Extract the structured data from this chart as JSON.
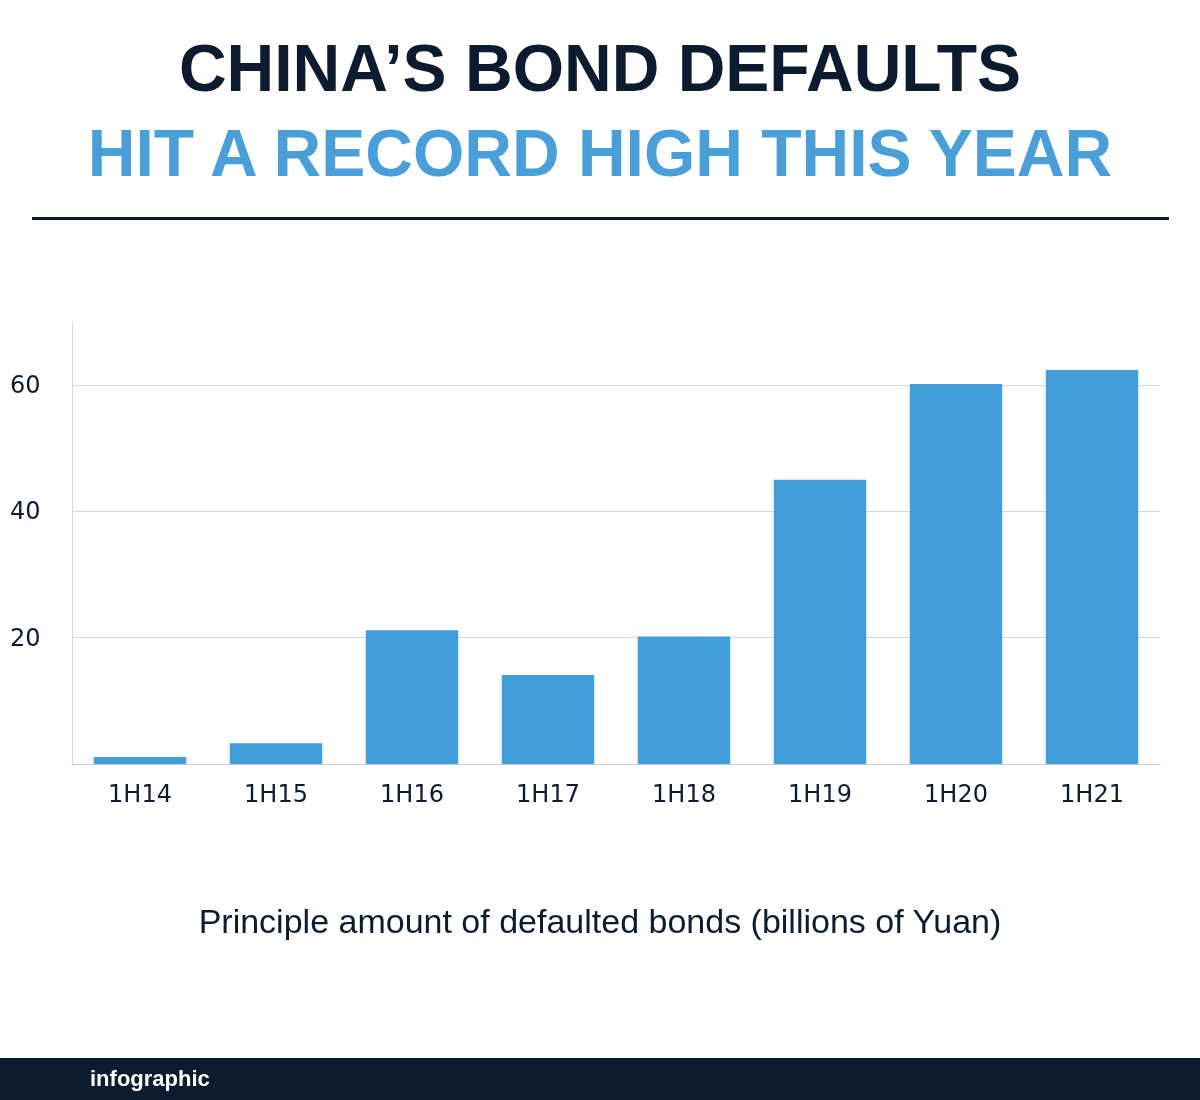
{
  "chart_data": {
    "type": "bar",
    "title": "CHINA’S BOND DEFAULTS",
    "subtitle": "HIT A RECORD HIGH THIS YEAR",
    "xlabel": "Principle amount of defaulted bonds (billions of Yuan)",
    "annotations": [
      "infographic"
    ],
    "categories": [
      "1H14",
      "1H15",
      "1H16",
      "1H17",
      "1H18",
      "1H19",
      "1H20",
      "1H21"
    ],
    "values": [
      1.1,
      3.3,
      21.2,
      14.1,
      20.2,
      45.0,
      60.2,
      62.4
    ],
    "color": "#429ed8",
    "ylim": [
      0,
      70
    ],
    "yticks": [
      20,
      40,
      60
    ],
    "grid": "y"
  }
}
